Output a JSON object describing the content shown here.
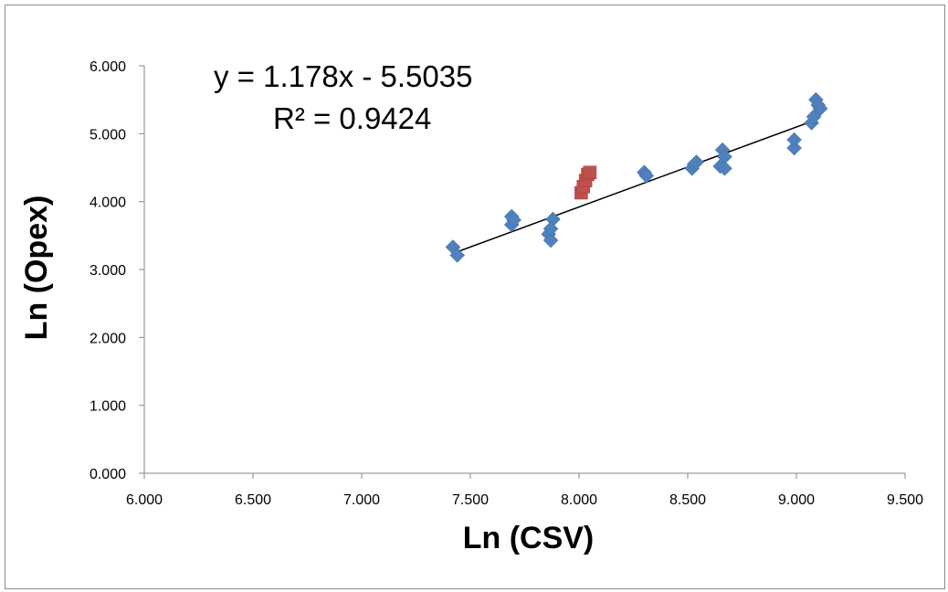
{
  "chart_data": {
    "type": "scatter",
    "xlabel": "Ln (CSV)",
    "ylabel": "Ln (Opex)",
    "xlim": [
      6.0,
      9.5
    ],
    "ylim": [
      0.0,
      6.0
    ],
    "x_ticks": [
      "6.000",
      "6.500",
      "7.000",
      "7.500",
      "8.000",
      "8.500",
      "9.000",
      "9.500"
    ],
    "y_ticks": [
      "0.000",
      "1.000",
      "2.000",
      "3.000",
      "4.000",
      "5.000",
      "6.000"
    ],
    "grid": false,
    "legend": "none",
    "series": [
      {
        "marker": "diamond",
        "color": "#4f81bd",
        "points": [
          [
            7.42,
            3.33
          ],
          [
            7.44,
            3.21
          ],
          [
            7.69,
            3.78
          ],
          [
            7.69,
            3.66
          ],
          [
            7.7,
            3.73
          ],
          [
            7.86,
            3.52
          ],
          [
            7.87,
            3.43
          ],
          [
            7.88,
            3.74
          ],
          [
            7.87,
            3.6
          ],
          [
            8.3,
            4.43
          ],
          [
            8.31,
            4.38
          ],
          [
            8.52,
            4.49
          ],
          [
            8.53,
            4.55
          ],
          [
            8.54,
            4.58
          ],
          [
            8.65,
            4.52
          ],
          [
            8.66,
            4.76
          ],
          [
            8.67,
            4.66
          ],
          [
            8.67,
            4.49
          ],
          [
            8.99,
            4.79
          ],
          [
            8.99,
            4.91
          ],
          [
            9.07,
            5.16
          ],
          [
            9.08,
            5.25
          ],
          [
            9.09,
            5.5
          ],
          [
            9.1,
            5.42
          ],
          [
            9.11,
            5.37
          ]
        ]
      },
      {
        "marker": "square",
        "color": "#c0504d",
        "points": [
          [
            8.01,
            4.13
          ],
          [
            8.02,
            4.22
          ],
          [
            8.03,
            4.31
          ],
          [
            8.04,
            4.4
          ],
          [
            8.05,
            4.43
          ]
        ]
      }
    ],
    "trendline": {
      "type": "linear",
      "slope": 1.178,
      "intercept": -5.5035,
      "x_range": [
        7.42,
        9.1
      ],
      "color": "#000000"
    },
    "annotations": [
      "y = 1.178x - 5.5035",
      "R² = 0.9424"
    ]
  }
}
